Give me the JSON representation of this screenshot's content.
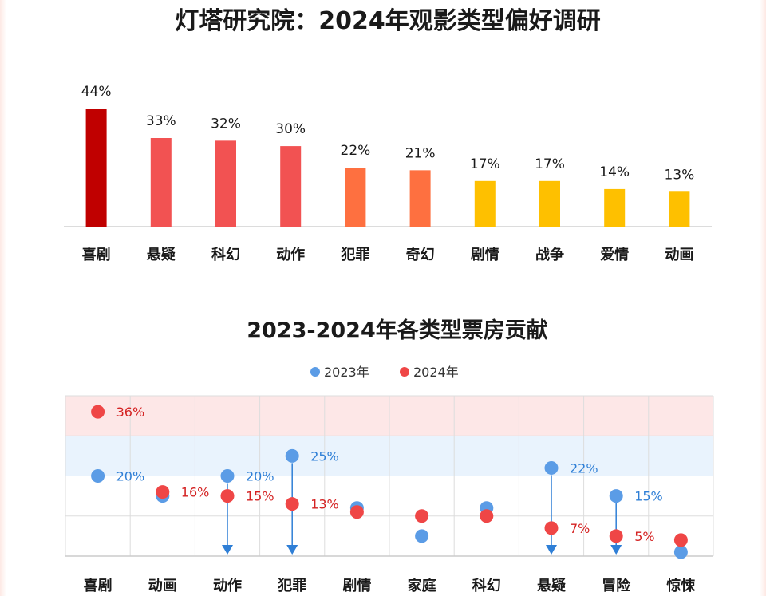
{
  "charts": {
    "top": {
      "title": "灯塔研究院：2024年观影类型偏好调研"
    },
    "bottom": {
      "title": "2023-2024年各类型票房贡献",
      "legend": [
        "2023年",
        "2024年"
      ]
    }
  },
  "colors": {
    "dark_red": "#c00000",
    "red": "#f25252",
    "orange": "#fe7040",
    "yellow": "#fec000",
    "blue": "#5b9ce6",
    "point_red": "#ef4646",
    "label_blue": "#2f7fd6",
    "label_red": "#d42222",
    "band_red": "#fde7e7",
    "band_blue": "#e9f3fd",
    "arrow_blue": "#2f7fd6"
  },
  "chart_data": [
    {
      "type": "bar",
      "title": "灯塔研究院：2024年观影类型偏好调研",
      "categories": [
        "喜剧",
        "悬疑",
        "科幻",
        "动作",
        "犯罪",
        "奇幻",
        "剧情",
        "战争",
        "爱情",
        "动画"
      ],
      "values": [
        44,
        33,
        32,
        30,
        22,
        21,
        17,
        17,
        14,
        13
      ],
      "data_labels": [
        "44%",
        "33%",
        "32%",
        "30%",
        "22%",
        "21%",
        "17%",
        "17%",
        "14%",
        "13%"
      ],
      "bar_colors": [
        "#c00000",
        "#f25252",
        "#f25252",
        "#f25252",
        "#fe7040",
        "#fe7040",
        "#fec000",
        "#fec000",
        "#fec000",
        "#fec000"
      ],
      "ylim": [
        0,
        44
      ],
      "grid": false
    },
    {
      "type": "scatter",
      "title": "2023-2024年各类型票房贡献",
      "categories": [
        "喜剧",
        "动画",
        "动作",
        "犯罪",
        "剧情",
        "家庭",
        "科幻",
        "悬疑",
        "冒险",
        "惊悚"
      ],
      "series": [
        {
          "name": "2023年",
          "values": [
            20,
            15,
            20,
            25,
            12,
            5,
            12,
            22,
            15,
            1
          ]
        },
        {
          "name": "2024年",
          "values": [
            36,
            16,
            15,
            13,
            11,
            10,
            10,
            7,
            5,
            4
          ]
        }
      ],
      "labels_2023": [
        "20%",
        "",
        "20%",
        "25%",
        "",
        "",
        "",
        "22%",
        "15%",
        ""
      ],
      "labels_2024": [
        "36%",
        "16%",
        "15%",
        "13%",
        "",
        "",
        "",
        "7%",
        "5%",
        ""
      ],
      "decline_arrows": [
        "动作",
        "犯罪",
        "悬疑",
        "冒险"
      ],
      "bands": [
        {
          "from": 30,
          "to": 40,
          "color": "#fde7e7"
        },
        {
          "from": 20,
          "to": 30,
          "color": "#e9f3fd"
        }
      ],
      "ylim": [
        0,
        40
      ],
      "legend_position": "top-center",
      "grid": true
    }
  ]
}
